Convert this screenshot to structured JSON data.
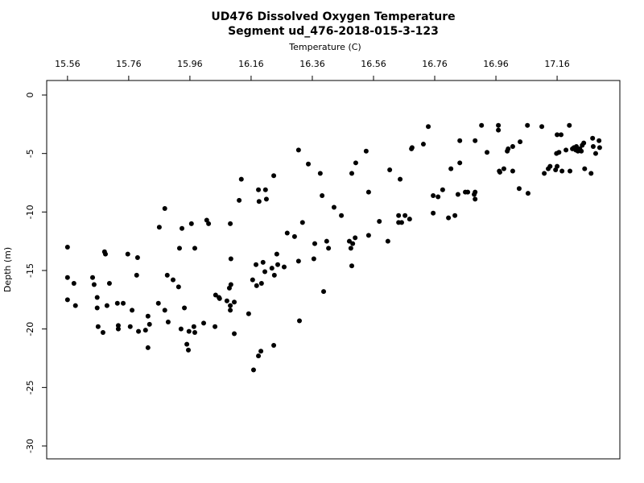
{
  "chart_data": {
    "type": "scatter",
    "title": "UD476 Dissolved Oxygen Temperature",
    "subtitle": "Segment ud_476-2018-015-3-123",
    "x_label": "Temperature (C)",
    "y_label": "Depth (m)",
    "color": "#000000",
    "xlim": [
      15.492,
      17.365
    ],
    "ylim": [
      -31.1,
      1.24
    ],
    "xticks": [
      15.56,
      15.76,
      15.96,
      16.16,
      16.36,
      16.56,
      16.76,
      16.96,
      17.16
    ],
    "yticks": [
      0,
      -5,
      -10,
      -15,
      -20,
      -25,
      -30
    ],
    "x": [
      15.56,
      15.56,
      15.56,
      15.581,
      15.586,
      15.642,
      15.647,
      15.657,
      15.657,
      15.66,
      15.676,
      15.681,
      15.684,
      15.689,
      15.697,
      15.723,
      15.726,
      15.726,
      15.742,
      15.757,
      15.765,
      15.771,
      15.786,
      15.789,
      15.792,
      15.815,
      15.823,
      15.823,
      15.828,
      15.857,
      15.86,
      15.878,
      15.878,
      15.886,
      15.889,
      15.905,
      15.923,
      15.926,
      15.931,
      15.934,
      15.942,
      15.95,
      15.955,
      15.957,
      15.965,
      15.973,
      15.976,
      15.976,
      16.005,
      16.015,
      16.021,
      16.042,
      16.044,
      16.055,
      16.057,
      16.081,
      16.089,
      16.092,
      16.092,
      16.092,
      16.094,
      16.094,
      16.105,
      16.105,
      16.121,
      16.128,
      16.152,
      16.165,
      16.168,
      16.176,
      16.178,
      16.184,
      16.184,
      16.186,
      16.192,
      16.194,
      16.199,
      16.205,
      16.207,
      16.21,
      16.228,
      16.234,
      16.234,
      16.236,
      16.244,
      16.247,
      16.268,
      16.278,
      16.302,
      16.315,
      16.315,
      16.318,
      16.328,
      16.347,
      16.365,
      16.368,
      16.386,
      16.392,
      16.397,
      16.407,
      16.413,
      16.431,
      16.455,
      16.481,
      16.486,
      16.489,
      16.489,
      16.492,
      16.5,
      16.502,
      16.536,
      16.544,
      16.544,
      16.579,
      16.607,
      16.613,
      16.642,
      16.642,
      16.647,
      16.652,
      16.663,
      16.678,
      16.684,
      16.686,
      16.723,
      16.739,
      16.755,
      16.755,
      16.771,
      16.786,
      16.805,
      16.813,
      16.826,
      16.836,
      16.842,
      16.842,
      16.86,
      16.868,
      16.889,
      16.892,
      16.892,
      16.892,
      16.913,
      16.931,
      16.968,
      16.968,
      16.971,
      16.973,
      16.986,
      16.997,
      17.0,
      17.015,
      17.015,
      17.036,
      17.039,
      17.063,
      17.065,
      17.11,
      17.118,
      17.131,
      17.137,
      17.155,
      17.158,
      17.16,
      17.16,
      17.166,
      17.173,
      17.176,
      17.189,
      17.2,
      17.202,
      17.21,
      17.215,
      17.221,
      17.223,
      17.228,
      17.234,
      17.239,
      17.242,
      17.247,
      17.25,
      17.271,
      17.276,
      17.278,
      17.286,
      17.297,
      17.299
    ],
    "values": [
      -13.0,
      -15.6,
      -17.5,
      -16.1,
      -18.0,
      -15.6,
      -16.2,
      -17.3,
      -18.2,
      -19.8,
      -20.3,
      -13.4,
      -13.6,
      -18.0,
      -16.1,
      -17.8,
      -19.7,
      -20.0,
      -17.8,
      -13.6,
      -19.8,
      -18.4,
      -15.4,
      -13.9,
      -20.2,
      -20.1,
      -21.6,
      -18.9,
      -19.6,
      -17.8,
      -11.3,
      -9.7,
      -18.4,
      -15.4,
      -19.4,
      -15.8,
      -16.4,
      -13.1,
      -20.0,
      -11.4,
      -18.2,
      -21.3,
      -21.8,
      -20.2,
      -11.0,
      -19.8,
      -13.1,
      -20.3,
      -19.5,
      -10.7,
      -11.0,
      -19.8,
      -17.1,
      -17.3,
      -17.4,
      -17.6,
      -16.5,
      -18.0,
      -18.4,
      -11.0,
      -14.0,
      -16.2,
      -17.7,
      -20.4,
      -9.0,
      -7.2,
      -18.7,
      -15.8,
      -23.5,
      -14.5,
      -16.3,
      -22.3,
      -8.1,
      -9.1,
      -21.9,
      -16.1,
      -14.3,
      -15.1,
      -8.1,
      -8.9,
      -14.8,
      -6.9,
      -21.4,
      -15.4,
      -13.6,
      -14.5,
      -14.7,
      -11.8,
      -12.1,
      -4.7,
      -14.2,
      -19.3,
      -10.9,
      -5.9,
      -14.0,
      -12.7,
      -6.7,
      -8.6,
      -16.8,
      -12.5,
      -13.1,
      -9.6,
      -10.3,
      -12.5,
      -13.1,
      -14.6,
      -6.7,
      -12.7,
      -12.2,
      -5.8,
      -4.8,
      -8.3,
      -12.0,
      -10.8,
      -12.5,
      -6.4,
      -10.3,
      -10.9,
      -7.2,
      -10.9,
      -10.3,
      -10.6,
      -4.6,
      -4.5,
      -4.2,
      -2.7,
      -8.6,
      -10.1,
      -8.7,
      -8.1,
      -10.5,
      -6.3,
      -10.3,
      -8.5,
      -3.9,
      -5.8,
      -8.3,
      -8.3,
      -8.5,
      -8.3,
      -8.9,
      -3.9,
      -2.6,
      -4.9,
      -2.6,
      -3.0,
      -6.5,
      -6.6,
      -6.3,
      -4.8,
      -4.6,
      -4.4,
      -6.5,
      -8.0,
      -4.0,
      -2.6,
      -8.4,
      -2.7,
      -6.7,
      -6.3,
      -6.1,
      -6.4,
      -5.0,
      -3.4,
      -6.1,
      -4.9,
      -3.4,
      -6.5,
      -4.7,
      -2.6,
      -6.5,
      -4.6,
      -4.5,
      -4.7,
      -4.4,
      -4.8,
      -4.6,
      -4.8,
      -4.3,
      -4.1,
      -6.3,
      -6.7,
      -3.7,
      -4.4,
      -5.0,
      -3.9,
      -4.5
    ]
  }
}
